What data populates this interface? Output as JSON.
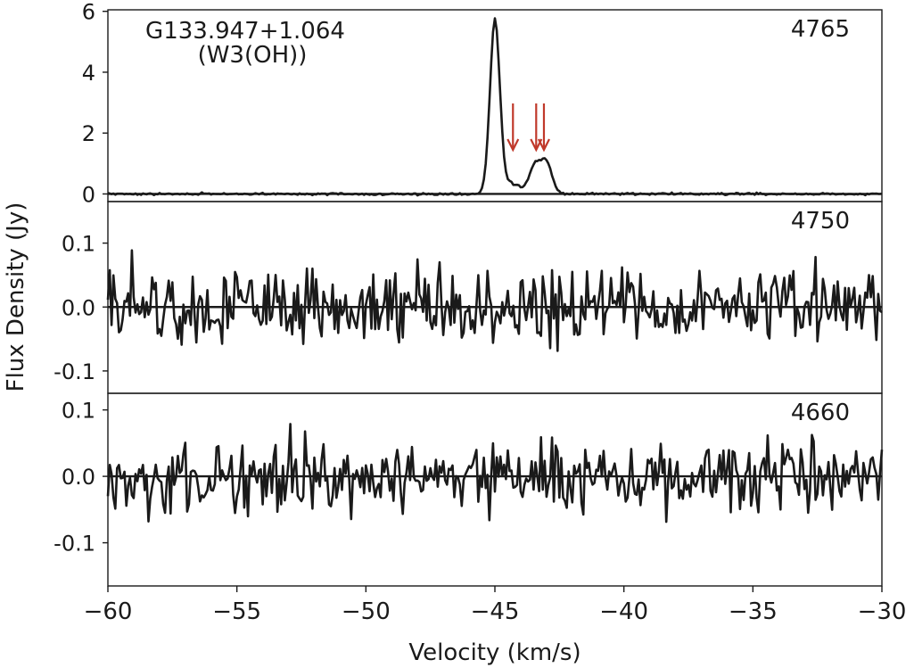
{
  "chart_data": {
    "type": "line",
    "xlabel": "Velocity (km/s)",
    "ylabel": "Flux Density (Jy)",
    "xlim": [
      -60,
      -30
    ],
    "xticks": [
      -60,
      -55,
      -50,
      -45,
      -40,
      -35,
      -30
    ],
    "xtick_labels": [
      "−60",
      "−55",
      "−50",
      "−45",
      "−40",
      "−35",
      "−30"
    ],
    "source_name": "G133.947+1.064",
    "source_alias": "(W3(OH))",
    "arrow_color": "#c0392b",
    "line_color": "#1a1a1a",
    "panels": [
      {
        "label": "4765",
        "ylim": [
          -0.25,
          6.05
        ],
        "yticks": [
          0,
          2,
          4,
          6
        ],
        "ytick_labels": [
          "0",
          "2",
          "4",
          "6"
        ],
        "noise": 0.03,
        "arrows_x": [
          -44.3,
          -43.4,
          -43.1
        ],
        "peaks": [
          {
            "x": -45.0,
            "amp": 5.7,
            "w": 0.19
          },
          {
            "x": -44.35,
            "amp": 0.35,
            "w": 0.35
          },
          {
            "x": -43.45,
            "amp": 0.9,
            "w": 0.22
          },
          {
            "x": -43.0,
            "amp": 1.0,
            "w": 0.22
          }
        ]
      },
      {
        "label": "4750",
        "ylim": [
          -0.135,
          0.165
        ],
        "yticks": [
          -0.1,
          0.0,
          0.1
        ],
        "ytick_labels": [
          "-0.1",
          "0.0",
          "0.1"
        ],
        "noise": 0.048,
        "arrows_x": [],
        "peaks": []
      },
      {
        "label": "4660",
        "ylim": [
          -0.165,
          0.125
        ],
        "yticks": [
          -0.1,
          0.0,
          0.1
        ],
        "ytick_labels": [
          "-0.1",
          "0.0",
          "0.1"
        ],
        "noise": 0.045,
        "arrows_x": [],
        "peaks": []
      }
    ]
  }
}
